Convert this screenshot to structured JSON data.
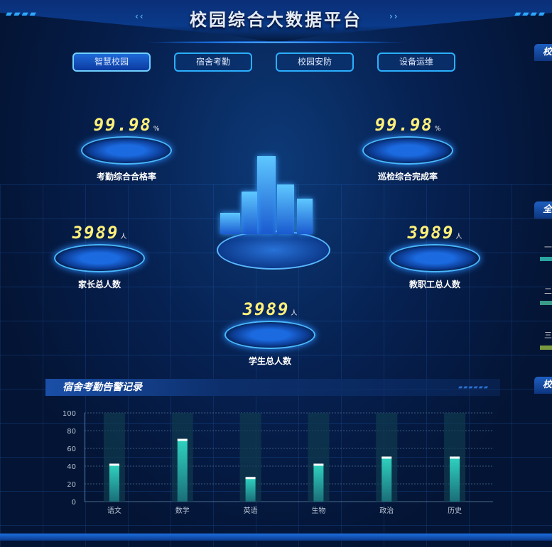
{
  "header": {
    "title": "校园综合大数据平台"
  },
  "tabs": [
    {
      "label": "智慧校园",
      "active": true
    },
    {
      "label": "宿舍考勤"
    },
    {
      "label": "校园安防"
    },
    {
      "label": "设备运维"
    }
  ],
  "stats": {
    "attendance_rate": {
      "value": "99.98",
      "unit": "%",
      "label": "考勤综合合格率"
    },
    "patrol_rate": {
      "value": "99.98",
      "unit": "%",
      "label": "巡检综合完成率"
    },
    "parents": {
      "value": "3989",
      "unit": "人",
      "label": "家长总人数"
    },
    "staff": {
      "value": "3989",
      "unit": "人",
      "label": "教职工总人数"
    },
    "students": {
      "value": "3989",
      "unit": "人",
      "label": "学生总人数"
    }
  },
  "right_panel": {
    "titles": [
      "校",
      "全",
      "校"
    ],
    "items": [
      {
        "label": "一",
        "color": "#2aa5a0"
      },
      {
        "label": "二",
        "color": "#3a9a88"
      },
      {
        "label": "三",
        "color": "#7a9a40"
      }
    ]
  },
  "chart_data": {
    "type": "bar",
    "title": "宿舍考勤告警记录",
    "categories": [
      "语文",
      "数学",
      "英语",
      "生物",
      "政治",
      "历史"
    ],
    "values": [
      42,
      70,
      27,
      42,
      50,
      50
    ],
    "ylim": [
      0,
      100
    ],
    "yticks": [
      "0",
      "20",
      "40",
      "60",
      "80",
      "100"
    ],
    "grid": true,
    "bar_color": "#2fd3c0",
    "background_bar_color": "#0f3a4e"
  }
}
